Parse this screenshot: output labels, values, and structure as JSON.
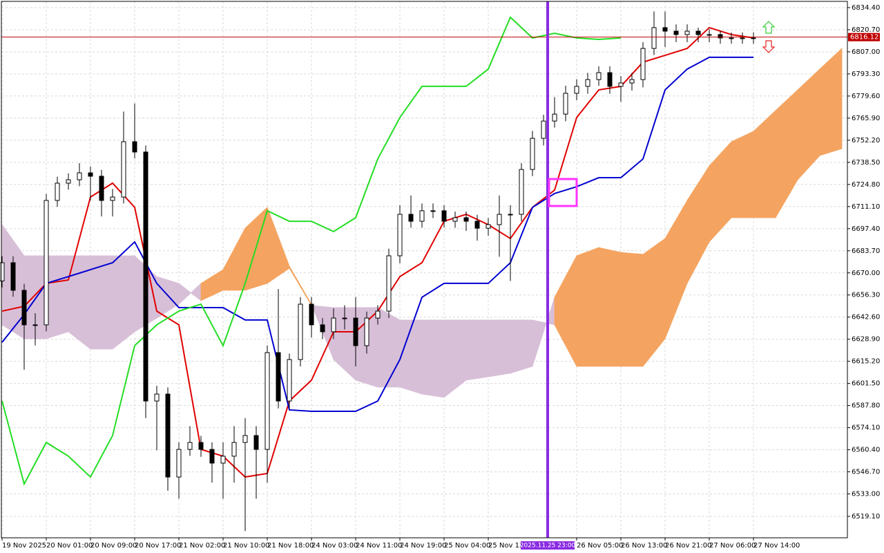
{
  "chart_data": {
    "type": "candlestick",
    "grid": true,
    "xlim": [
      -0.125,
      153.0
    ],
    "ylim": [
      6505.82,
      6838.26
    ],
    "yticks": [
      {
        "value": 6834.4,
        "label": "6834.40"
      },
      {
        "value": 6820.7,
        "label": "6820.70"
      },
      {
        "value": 6807.0,
        "label": "6807.00"
      },
      {
        "value": 6793.3,
        "label": "6793.30"
      },
      {
        "value": 6779.6,
        "label": "6779.60"
      },
      {
        "value": 6765.9,
        "label": "6765.90"
      },
      {
        "value": 6752.2,
        "label": "6752.20"
      },
      {
        "value": 6738.5,
        "label": "6738.50"
      },
      {
        "value": 6724.8,
        "label": "6724.80"
      },
      {
        "value": 6711.1,
        "label": "6711.10"
      },
      {
        "value": 6697.4,
        "label": "6697.40"
      },
      {
        "value": 6683.7,
        "label": "6683.70"
      },
      {
        "value": 6670.0,
        "label": "6670.00"
      },
      {
        "value": 6656.3,
        "label": "6656.30"
      },
      {
        "value": 6642.6,
        "label": "6642.60"
      },
      {
        "value": 6628.9,
        "label": "6628.90"
      },
      {
        "value": 6615.2,
        "label": "6615.20"
      },
      {
        "value": 6601.5,
        "label": "6601.50"
      },
      {
        "value": 6587.8,
        "label": "6587.80"
      },
      {
        "value": 6574.1,
        "label": "6574.10"
      },
      {
        "value": 6560.4,
        "label": "6560.40"
      },
      {
        "value": 6546.7,
        "label": "6546.70"
      },
      {
        "value": 6533.0,
        "label": "6533.00"
      },
      {
        "value": 6519.1,
        "label": "6519.10"
      }
    ],
    "xticks": [
      {
        "value": 0,
        "label": "19 Nov 2025"
      },
      {
        "value": 8,
        "label": "20 Nov 01:00"
      },
      {
        "value": 16,
        "label": "20 Nov 09:00"
      },
      {
        "value": 24,
        "label": "20 Nov 17:00"
      },
      {
        "value": 32,
        "label": "21 Nov 02:00"
      },
      {
        "value": 40,
        "label": "21 Nov 10:00"
      },
      {
        "value": 48,
        "label": "21 Nov 18:00"
      },
      {
        "value": 56,
        "label": "24 Nov 03:00"
      },
      {
        "value": 64,
        "label": "24 Nov 11:00"
      },
      {
        "value": 72,
        "label": "24 Nov 19:00"
      },
      {
        "value": 80,
        "label": "25 Nov 04:00"
      },
      {
        "value": 88,
        "label": "25 Nov 12:00"
      },
      {
        "value": 104,
        "label": "26 Nov 05:00"
      },
      {
        "value": 112,
        "label": "26 Nov 13:00"
      },
      {
        "value": 120,
        "label": "26 Nov 21:00"
      },
      {
        "value": 128,
        "label": "27 Nov 06:00"
      },
      {
        "value": 136,
        "label": "27 Nov 14:00"
      }
    ],
    "cloud": {
      "up_color": "#f4a460",
      "down_color": "#d8bfd8",
      "x": [
        0,
        4,
        8,
        12,
        16,
        20,
        24,
        28,
        32,
        36,
        40,
        44,
        48,
        52,
        56,
        60,
        64,
        68,
        72,
        76,
        80,
        84,
        88,
        92,
        96,
        100,
        104,
        108,
        112,
        116,
        120,
        124,
        128,
        132,
        136,
        140,
        144,
        148,
        152
      ],
      "span_a": [
        6637.8,
        6629.2,
        6629.2,
        6633.5,
        6622.8,
        6622.8,
        6633.5,
        6642.0,
        6650.6,
        6663.5,
        6672.0,
        6697.7,
        6710.6,
        6674.2,
        6650.6,
        6616.3,
        6603.5,
        6599.2,
        6599.2,
        6594.9,
        6592.8,
        6603.5,
        6605.6,
        6607.8,
        6612.1,
        6654.9,
        6680.6,
        6685.7,
        6682.7,
        6681.5,
        6691.3,
        6714.9,
        6736.3,
        6751.3,
        6757.7,
        6770.6,
        6783.4,
        6796.3,
        6809.1
      ],
      "span_b": [
        6699.9,
        6680.6,
        6680.6,
        6680.6,
        6680.6,
        6680.6,
        6680.6,
        6667.7,
        6663.5,
        6652.8,
        6659.2,
        6659.2,
        6663.5,
        6672.9,
        6649.8,
        6648.5,
        6648.5,
        6648.5,
        6640.8,
        6640.8,
        6640.8,
        6640.8,
        6640.8,
        6640.8,
        6640.8,
        6637.8,
        6612.1,
        6612.1,
        6612.1,
        6612.1,
        6629.2,
        6663.5,
        6689.2,
        6704.2,
        6704.2,
        6704.2,
        6727.7,
        6742.7,
        6747.0
      ]
    },
    "series": [
      {
        "color": "#e00000",
        "x": [
          0,
          4,
          8,
          12,
          16,
          20,
          24,
          28,
          32,
          36,
          40,
          44,
          48,
          52,
          56,
          60,
          64,
          68,
          72,
          76,
          80,
          84,
          88,
          92,
          96,
          100,
          104,
          108,
          112,
          116,
          120,
          124,
          128,
          132,
          136
        ],
        "values": [
          6646.3,
          6649.3,
          6663.5,
          6665.6,
          6717.0,
          6725.6,
          6710.6,
          6646.3,
          6637.8,
          6560.6,
          6556.4,
          6543.5,
          6545.7,
          6590.6,
          6603.5,
          6633.5,
          6633.5,
          6646.3,
          6667.7,
          6676.3,
          6702.0,
          6706.3,
          6699.9,
          6691.3,
          6710.6,
          6721.3,
          6766.3,
          6783.4,
          6785.6,
          6800.6,
          6804.8,
          6809.1,
          6822.0,
          6817.7,
          6815.6
        ]
      },
      {
        "color": "#0000d0",
        "x": [
          0,
          4,
          8,
          12,
          16,
          20,
          24,
          28,
          32,
          36,
          40,
          44,
          48,
          52,
          56,
          60,
          64,
          68,
          72,
          76,
          80,
          84,
          88,
          92,
          96,
          100,
          104,
          108,
          112,
          116,
          120,
          124,
          128,
          132,
          136
        ],
        "values": [
          6627.0,
          6644.2,
          6663.5,
          6667.7,
          6672.0,
          6676.3,
          6689.2,
          6663.5,
          6648.5,
          6648.5,
          6648.5,
          6640.8,
          6640.8,
          6585.1,
          6584.2,
          6584.2,
          6584.2,
          6590.6,
          6616.3,
          6654.9,
          6663.5,
          6663.5,
          6663.5,
          6676.3,
          6710.6,
          6719.2,
          6723.4,
          6729.0,
          6729.0,
          6740.6,
          6783.4,
          6796.3,
          6803.6,
          6803.6,
          6803.6
        ]
      },
      {
        "color": "#22dd22",
        "x": [
          0,
          4,
          8,
          12,
          16,
          20,
          24,
          28,
          32,
          36,
          40,
          44,
          48,
          52,
          56,
          60,
          64,
          68,
          72,
          76,
          80,
          84,
          88,
          92,
          96,
          100,
          104,
          108,
          112
        ],
        "values": [
          6590.6,
          6539.2,
          6564.9,
          6556.4,
          6543.5,
          6569.2,
          6624.9,
          6637.8,
          6646.3,
          6650.6,
          6624.9,
          6663.5,
          6708.5,
          6702.0,
          6702.0,
          6695.6,
          6704.2,
          6740.6,
          6766.3,
          6785.6,
          6785.6,
          6785.6,
          6796.3,
          6828.4,
          6815.6,
          6818.5,
          6815.6,
          6814.7,
          6815.6
        ]
      }
    ],
    "candles": {
      "up_color": "#ffffff",
      "down_color": "#000000",
      "edge_color": "#000000",
      "x": [
        0,
        2,
        4,
        6,
        8,
        10,
        12,
        14,
        16,
        18,
        20,
        22,
        24,
        26,
        28,
        30,
        32,
        34,
        36,
        38,
        40,
        42,
        44,
        46,
        48,
        50,
        52,
        54,
        56,
        58,
        60,
        62,
        64,
        66,
        68,
        70,
        72,
        74,
        76,
        78,
        80,
        82,
        84,
        86,
        88,
        90,
        92,
        94,
        96,
        98,
        100,
        102,
        104,
        106,
        108,
        110,
        112,
        114,
        116,
        118,
        120,
        122,
        124,
        126,
        128,
        130,
        132,
        134,
        136
      ],
      "open": [
        6665.0,
        6676.3,
        6659.2,
        6637.8,
        6637.8,
        6714.9,
        6725.6,
        6727.7,
        6732.0,
        6729.9,
        6714.9,
        6717.0,
        6751.3,
        6744.9,
        6590.6,
        6594.9,
        6543.5,
        6560.6,
        6564.9,
        6560.6,
        6552.1,
        6556.4,
        6564.9,
        6569.2,
        6560.6,
        6620.6,
        6590.6,
        6616.3,
        6650.6,
        6637.8,
        6633.5,
        6642.0,
        6642.0,
        6624.9,
        6642.0,
        6646.3,
        6680.6,
        6706.3,
        6702.0,
        6708.5,
        6708.5,
        6702.0,
        6704.2,
        6702.0,
        6697.7,
        6699.9,
        6706.3,
        6706.3,
        6734.1,
        6753.4,
        6764.1,
        6768.4,
        6781.3,
        6785.6,
        6789.8,
        6794.1,
        6785.6,
        6787.7,
        6789.8,
        6809.1,
        6822.0,
        6819.8,
        6817.7,
        6819.8,
        6817.7,
        6817.7,
        6815.6,
        6815.6,
        6815.6
      ],
      "high": [
        6680.3,
        6680.3,
        6663.2,
        6645.0,
        6718.9,
        6729.6,
        6731.7,
        6738.0,
        6736.0,
        6733.9,
        6722.0,
        6770.0,
        6775.0,
        6749.0,
        6600.0,
        6599.0,
        6565.0,
        6575.0,
        6569.0,
        6565.0,
        6565.0,
        6575.0,
        6580.0,
        6575.0,
        6625.0,
        6660.0,
        6620.0,
        6655.0,
        6655.0,
        6642.0,
        6648.0,
        6650.0,
        6655.0,
        6646.0,
        6650.0,
        6685.0,
        6712.0,
        6718.0,
        6713.0,
        6713.0,
        6712.0,
        6708.0,
        6708.0,
        6706.0,
        6704.0,
        6718.0,
        6712.0,
        6738.0,
        6758.0,
        6768.0,
        6779.0,
        6786.0,
        6790.0,
        6794.0,
        6798.0,
        6798.0,
        6792.0,
        6794.0,
        6813.0,
        6832.0,
        6832.0,
        6824.0,
        6824.0,
        6822.0,
        6821.0,
        6820.0,
        6819.0,
        6819.0,
        6819.0
      ],
      "low": [
        6661.0,
        6655.2,
        6610.0,
        6625.0,
        6633.8,
        6710.9,
        6721.6,
        6723.7,
        6715.0,
        6705.0,
        6705.0,
        6713.0,
        6740.9,
        6580.0,
        6560.0,
        6535.0,
        6530.0,
        6556.6,
        6556.0,
        6540.0,
        6530.0,
        6540.0,
        6510.0,
        6530.0,
        6540.0,
        6586.0,
        6586.0,
        6612.0,
        6630.0,
        6629.0,
        6629.0,
        6635.0,
        6612.0,
        6620.0,
        6638.0,
        6642.0,
        6676.0,
        6698.0,
        6698.0,
        6704.0,
        6698.0,
        6698.0,
        6696.0,
        6690.0,
        6693.0,
        6680.0,
        6665.0,
        6702.0,
        6730.0,
        6749.0,
        6760.0,
        6764.0,
        6777.0,
        6781.0,
        6786.0,
        6781.0,
        6776.0,
        6783.0,
        6785.0,
        6805.0,
        6810.0,
        6813.0,
        6813.0,
        6813.0,
        6813.0,
        6812.0,
        6812.0,
        6812.0,
        6812.0
      ],
      "close": [
        6676.3,
        6659.2,
        6637.8,
        6637.8,
        6714.9,
        6725.6,
        6727.7,
        6732.0,
        6729.9,
        6714.9,
        6717.0,
        6751.3,
        6744.9,
        6590.6,
        6594.9,
        6543.5,
        6560.6,
        6564.9,
        6560.6,
        6552.1,
        6556.4,
        6564.9,
        6569.2,
        6560.6,
        6620.6,
        6590.6,
        6616.3,
        6650.6,
        6637.8,
        6633.5,
        6642.0,
        6642.0,
        6624.9,
        6642.0,
        6646.3,
        6680.6,
        6706.3,
        6702.0,
        6708.5,
        6708.5,
        6702.0,
        6704.2,
        6702.0,
        6697.7,
        6699.9,
        6706.3,
        6706.3,
        6734.1,
        6753.4,
        6764.1,
        6768.4,
        6781.3,
        6785.6,
        6789.8,
        6794.1,
        6785.6,
        6787.7,
        6789.8,
        6809.1,
        6822.0,
        6819.8,
        6817.7,
        6819.8,
        6817.7,
        6817.7,
        6815.6,
        6815.6,
        6815.6,
        6815.6
      ]
    },
    "price_line": {
      "value": 6816.12,
      "color": "#c00000"
    },
    "marker_line": {
      "x": 98.75,
      "label": "2025.11.25 23:00",
      "color": "#8a2be2"
    }
  }
}
